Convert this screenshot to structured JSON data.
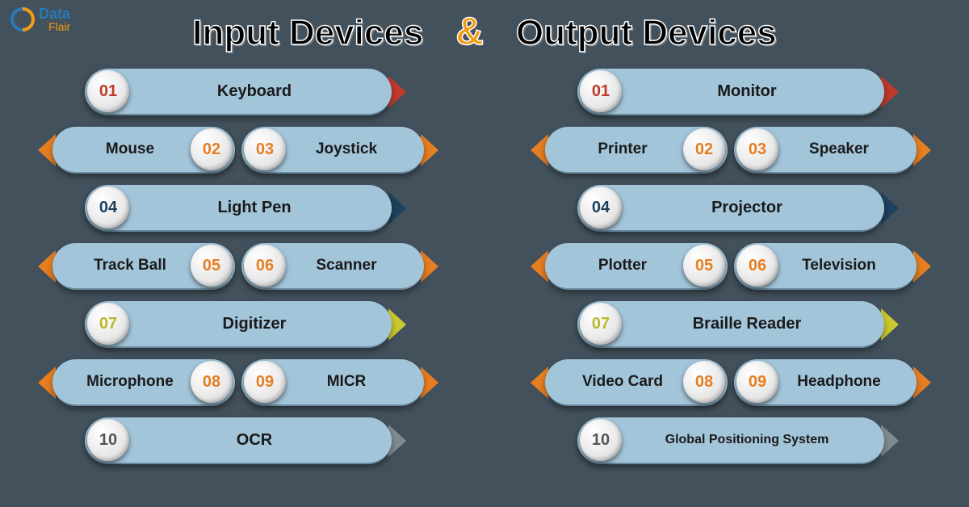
{
  "logo": {
    "line1": "Data",
    "line2": "Flair"
  },
  "title": {
    "left": "Input Devices",
    "amp": "&",
    "right": "Output Devices"
  },
  "colors": {
    "red": "#c0392b",
    "orange": "#e67e22",
    "navy": "#1e415e",
    "yellow": "#c9c92e",
    "grey": "#7f8c8d",
    "num_red": "#c0392b",
    "num_orange": "#e67e22",
    "num_navy": "#1e415e",
    "num_yellow": "#b8b82e",
    "num_grey": "#555"
  },
  "input": {
    "r1": {
      "num": "01",
      "label": "Keyboard",
      "numColor": "#c0392b",
      "arrow": "#c0392b"
    },
    "r2": {
      "ln": "02",
      "ll": "Mouse",
      "rn": "03",
      "rl": "Joystick",
      "numColor": "#e67e22",
      "arrow": "#e67e22"
    },
    "r3": {
      "num": "04",
      "label": "Light Pen",
      "numColor": "#1e415e",
      "arrow": "#1e415e"
    },
    "r4": {
      "ln": "05",
      "ll": "Track Ball",
      "rn": "06",
      "rl": "Scanner",
      "numColor": "#e67e22",
      "arrow": "#e67e22"
    },
    "r5": {
      "num": "07",
      "label": "Digitizer",
      "numColor": "#b8b82e",
      "arrow": "#c9c92e"
    },
    "r6": {
      "ln": "08",
      "ll": "Microphone",
      "rn": "09",
      "rl": "MICR",
      "numColor": "#e67e22",
      "arrow": "#e67e22"
    },
    "r7": {
      "num": "10",
      "label": "OCR",
      "numColor": "#555",
      "arrow": "#7f8c8d"
    }
  },
  "output": {
    "r1": {
      "num": "01",
      "label": "Monitor",
      "numColor": "#c0392b",
      "arrow": "#c0392b"
    },
    "r2": {
      "ln": "02",
      "ll": "Printer",
      "rn": "03",
      "rl": "Speaker",
      "numColor": "#e67e22",
      "arrow": "#e67e22"
    },
    "r3": {
      "num": "04",
      "label": "Projector",
      "numColor": "#1e415e",
      "arrow": "#1e415e"
    },
    "r4": {
      "ln": "05",
      "ll": "Plotter",
      "rn": "06",
      "rl": "Television",
      "numColor": "#e67e22",
      "arrow": "#e67e22"
    },
    "r5": {
      "num": "07",
      "label": "Braille Reader",
      "numColor": "#b8b82e",
      "arrow": "#c9c92e"
    },
    "r6": {
      "ln": "08",
      "ll": "Video Card",
      "rn": "09",
      "rl": "Headphone",
      "numColor": "#e67e22",
      "arrow": "#e67e22"
    },
    "r7": {
      "num": "10",
      "label": "Global Positioning System",
      "numColor": "#555",
      "arrow": "#7f8c8d",
      "small": true
    }
  }
}
